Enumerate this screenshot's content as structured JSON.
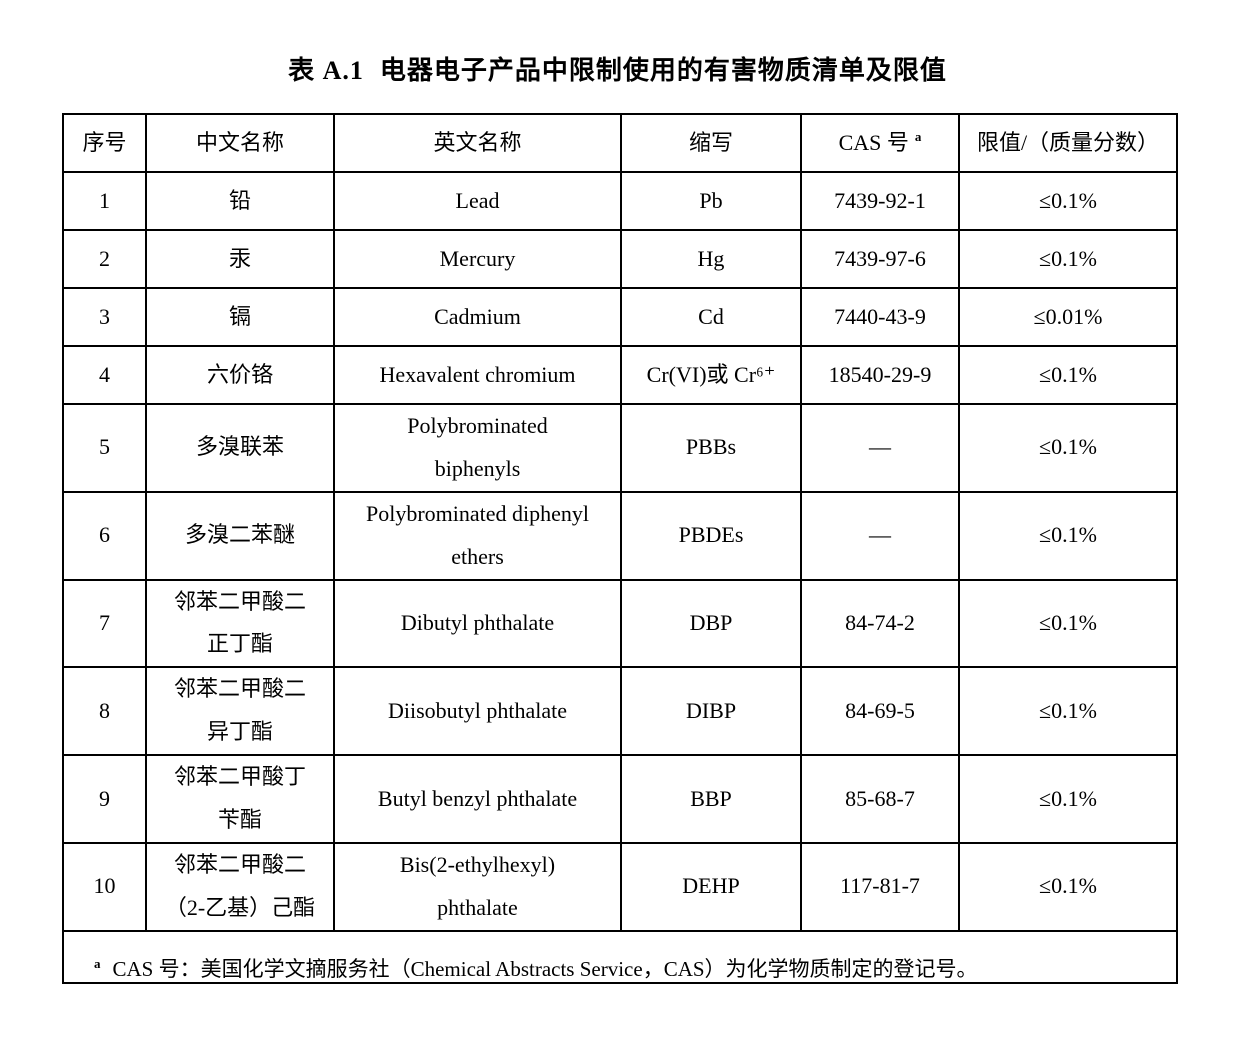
{
  "page": {
    "background_color": "#ffffff",
    "text_color": "#000000",
    "border_color": "#000000"
  },
  "table": {
    "title_label": "表 A.1",
    "title_text": "电器电子产品中限制使用的有害物质清单及限值",
    "columns": [
      "序号",
      "中文名称",
      "英文名称",
      "缩写",
      "CAS 号",
      "限值/（质量分数）"
    ],
    "cas_note_marker": "a",
    "rows": [
      {
        "no": "1",
        "cn": "铅",
        "en": "Lead",
        "abbr": "Pb",
        "cas": "7439-92-1",
        "limit": "≤0.1%"
      },
      {
        "no": "2",
        "cn": "汞",
        "en": "Mercury",
        "abbr": "Hg",
        "cas": "7439-97-6",
        "limit": "≤0.1%"
      },
      {
        "no": "3",
        "cn": "镉",
        "en": "Cadmium",
        "abbr": "Cd",
        "cas": "7440-43-9",
        "limit": "≤0.01%"
      },
      {
        "no": "4",
        "cn": "六价铬",
        "en": "Hexavalent chromium",
        "abbr": "Cr(VI)或 Cr⁶⁺",
        "cas": "18540-29-9",
        "limit": "≤0.1%"
      },
      {
        "no": "5",
        "cn": "多溴联苯",
        "en": "Polybrominated\nbiphenyls",
        "abbr": "PBBs",
        "cas": "—",
        "limit": "≤0.1%"
      },
      {
        "no": "6",
        "cn": "多溴二苯醚",
        "en": "Polybrominated diphenyl\nethers",
        "abbr": "PBDEs",
        "cas": "—",
        "limit": "≤0.1%"
      },
      {
        "no": "7",
        "cn": "邻苯二甲酸二\n正丁酯",
        "en": "Dibutyl phthalate",
        "abbr": "DBP",
        "cas": "84-74-2",
        "limit": "≤0.1%"
      },
      {
        "no": "8",
        "cn": "邻苯二甲酸二\n异丁酯",
        "en": "Diisobutyl phthalate",
        "abbr": "DIBP",
        "cas": "84-69-5",
        "limit": "≤0.1%"
      },
      {
        "no": "9",
        "cn": "邻苯二甲酸丁\n苄酯",
        "en": "Butyl benzyl phthalate",
        "abbr": "BBP",
        "cas": "85-68-7",
        "limit": "≤0.1%"
      },
      {
        "no": "10",
        "cn": "邻苯二甲酸二\n（2-乙基）己酯",
        "en": "Bis(2-ethylhexyl)\nphthalate",
        "abbr": "DEHP",
        "cas": "117-81-7",
        "limit": "≤0.1%"
      }
    ],
    "footnote": {
      "marker": "a",
      "text": "CAS 号：美国化学文摘服务社（Chemical Abstracts Service，CAS）为化学物质制定的登记号。"
    }
  }
}
